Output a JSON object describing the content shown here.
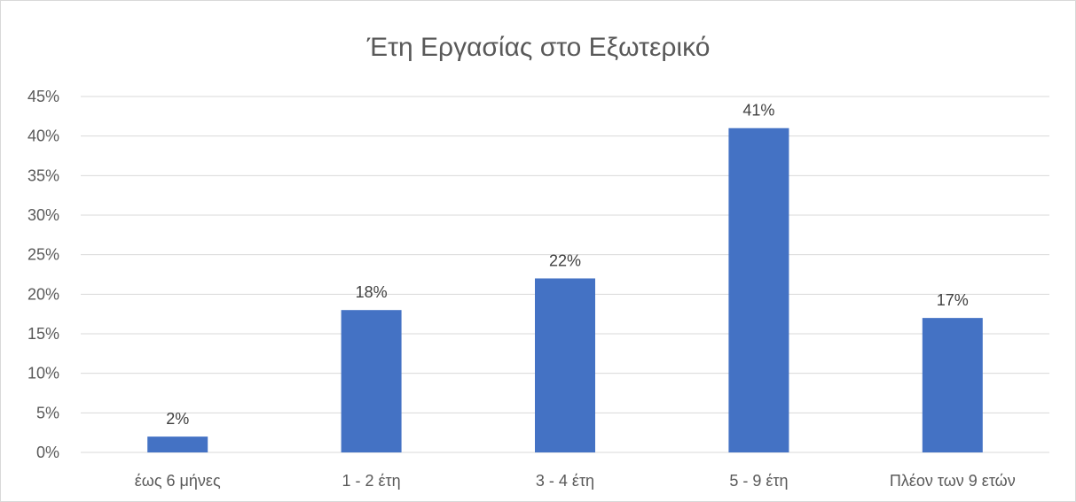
{
  "chart_data": {
    "type": "bar",
    "title": "Έτη Εργασίας στο Εξωτερικό",
    "xlabel": "",
    "ylabel": "",
    "categories": [
      "έως 6 μήνες",
      "1 - 2 έτη",
      "3 - 4 έτη",
      "5 - 9 έτη",
      "Πλέον των 9 ετών"
    ],
    "values": [
      2,
      18,
      22,
      41,
      17
    ],
    "data_labels": [
      "2%",
      "18%",
      "22%",
      "41%",
      "17%"
    ],
    "ylim": [
      0,
      45
    ],
    "y_ticks": [
      0,
      5,
      10,
      15,
      20,
      25,
      30,
      35,
      40,
      45
    ],
    "y_tick_labels": [
      "0%",
      "5%",
      "10%",
      "15%",
      "20%",
      "25%",
      "30%",
      "35%",
      "40%",
      "45%"
    ],
    "grid": true,
    "legend": "none",
    "colors": {
      "bar": "#4472c4",
      "grid": "#d9d9d9",
      "text": "#595959"
    }
  }
}
